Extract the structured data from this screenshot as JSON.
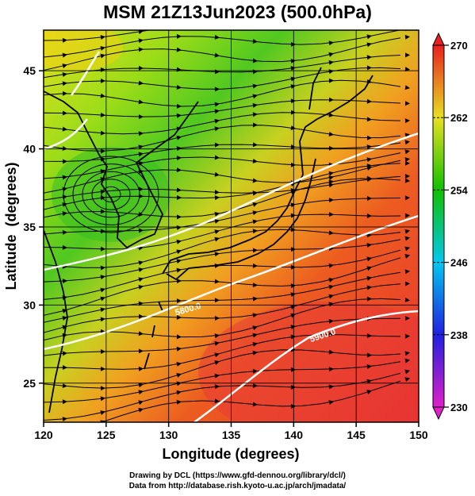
{
  "title": "MSM 21Z13Jun2023 (500.0hPa)",
  "xaxis": {
    "label": "Longitude (degrees)",
    "range": [
      120,
      150
    ],
    "ticks": [
      "120",
      "125",
      "130",
      "135",
      "140",
      "145",
      "150"
    ]
  },
  "yaxis": {
    "label": "Latitude  (degrees)",
    "range": [
      22.5,
      47.6
    ],
    "ticks": [
      "25",
      "30",
      "35",
      "40",
      "45"
    ]
  },
  "colorbar": {
    "range": [
      230,
      270
    ],
    "ticks": [
      "230",
      "238",
      "246",
      "254",
      "262",
      "270"
    ],
    "colors": [
      "#e020c8",
      "#2020e0",
      "#00c8f0",
      "#10c000",
      "#e8e020",
      "#e82020"
    ]
  },
  "contours": [
    {
      "label": "5800.0"
    },
    {
      "label": "5900.0"
    }
  ],
  "credits": {
    "line1": "Drawing by DCL (https://www.gfd-dennou.org/library/dcl/)",
    "line2": "Data from http://database.rish.kyoto-u.ac.jp/arch/jmadata/"
  },
  "colors": {
    "grid": "#000000",
    "contour": "#ffffff",
    "streamline": "#000000"
  }
}
